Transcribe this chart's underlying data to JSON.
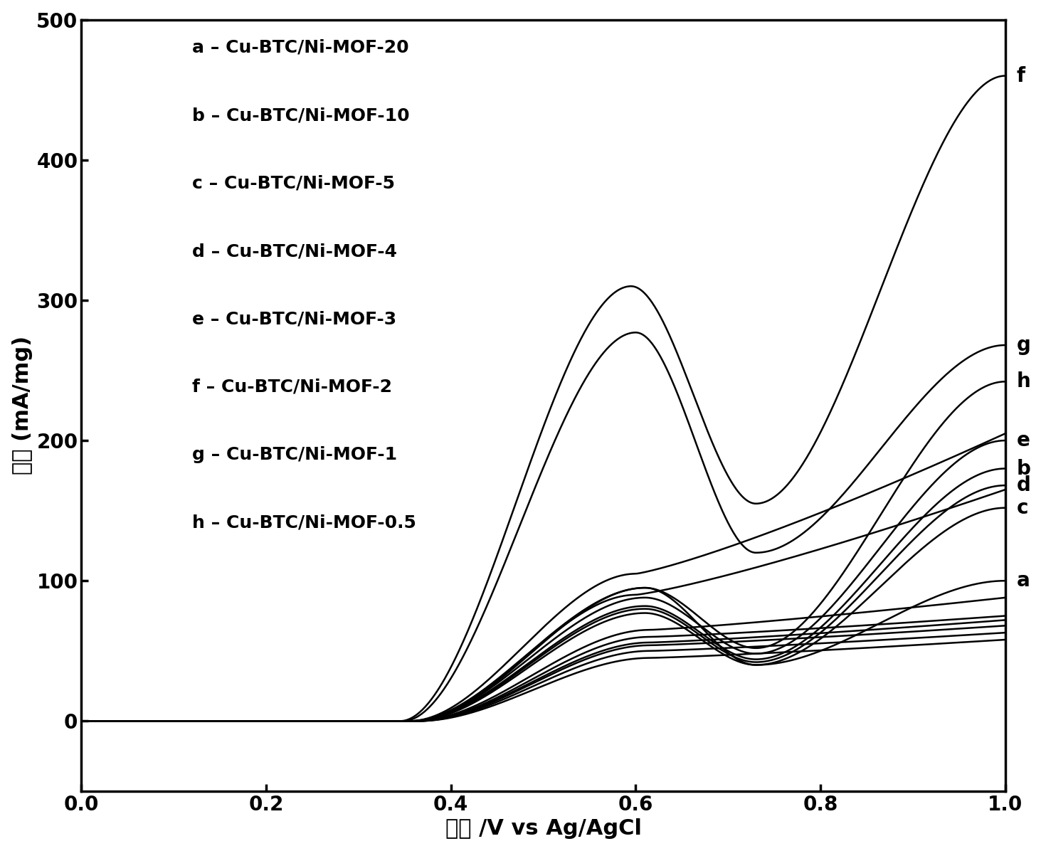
{
  "title": "",
  "xlabel": "电压 /V vs Ag/AgCl",
  "ylabel": "电流 (mA/mg)",
  "xlim": [
    0.0,
    1.0
  ],
  "ylim": [
    -50,
    500
  ],
  "yticks": [
    0,
    100,
    200,
    300,
    400,
    500
  ],
  "xticks": [
    0.0,
    0.2,
    0.4,
    0.6,
    0.8,
    1.0
  ],
  "legend_entries": [
    "a – Cu-BTC/Ni-MOF-20",
    "b – Cu-BTC/Ni-MOF-10",
    "c – Cu-BTC/Ni-MOF-5",
    "d – Cu-BTC/Ni-MOF-4",
    "e – Cu-BTC/Ni-MOF-3",
    "f – Cu-BTC/Ni-MOF-2",
    "g – Cu-BTC/Ni-MOF-1",
    "h – Cu-BTC/Ni-MOF-0.5"
  ],
  "background_color": "#ffffff",
  "line_color": "#000000",
  "font_size_axis_label": 22,
  "font_size_tick": 20,
  "font_size_legend": 18,
  "font_size_curve_label": 20
}
